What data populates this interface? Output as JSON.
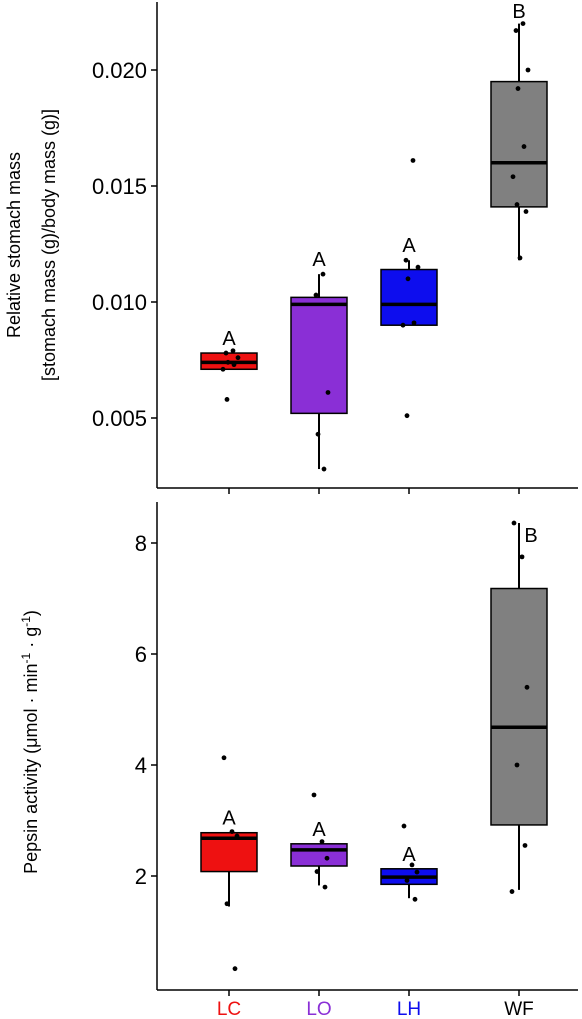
{
  "chart_data": [
    {
      "type": "box",
      "ylabel_line1": "Relative stomach mass",
      "ylabel_line2": "[stomach mass (g)/body mass (g)]",
      "ylim": [
        0.0025,
        0.0225
      ],
      "yticks": [
        0.005,
        0.01,
        0.015,
        0.02
      ],
      "ytick_labels": [
        "0.005",
        "0.010",
        "0.015",
        "0.020"
      ],
      "groups": [
        {
          "category": "LC",
          "color": "#ee1111",
          "q1": 0.0071,
          "median": 0.0074,
          "q3": 0.0078,
          "whisker_low": 0.0071,
          "whisker_high": 0.0078,
          "points": [
            0.0079,
            0.0078,
            0.0076,
            0.0074,
            0.0073,
            0.0071,
            0.0058
          ],
          "label": "A"
        },
        {
          "category": "LO",
          "color": "#8a2fd6",
          "q1": 0.0052,
          "median": 0.0099,
          "q3": 0.0102,
          "whisker_low": 0.0028,
          "whisker_high": 0.0112,
          "points": [
            0.0112,
            0.0103,
            0.0061,
            0.0043,
            0.0028
          ],
          "label": "A"
        },
        {
          "category": "LH",
          "color": "#0d0dee",
          "q1": 0.009,
          "median": 0.0099,
          "q3": 0.0114,
          "whisker_low": 0.009,
          "whisker_high": 0.0118,
          "points": [
            0.0161,
            0.0118,
            0.0115,
            0.011,
            0.0091,
            0.009,
            0.0051
          ],
          "label": "A"
        },
        {
          "category": "WF",
          "color": "#808080",
          "q1": 0.0141,
          "median": 0.016,
          "q3": 0.0195,
          "whisker_low": 0.0118,
          "whisker_high": 0.022,
          "points": [
            0.022,
            0.0217,
            0.02,
            0.0192,
            0.0167,
            0.0154,
            0.0142,
            0.0139,
            0.0119
          ],
          "label": "B"
        }
      ]
    },
    {
      "type": "box",
      "ylabel_prefix": "Pepsin activity (μmol · min",
      "ylabel_sup1": "-1",
      "ylabel_mid": " · g",
      "ylabel_sup2": "-1",
      "ylabel_suffix": ")",
      "ylim": [
        0.0,
        8.8
      ],
      "yticks": [
        2,
        4,
        6,
        8
      ],
      "ytick_labels": [
        "2",
        "4",
        "6",
        "8"
      ],
      "groups": [
        {
          "category": "LC",
          "color": "#ee1111",
          "q1": 2.08,
          "median": 2.68,
          "q3": 2.78,
          "whisker_low": 1.45,
          "whisker_high": 2.78,
          "points": [
            4.13,
            2.8,
            2.72,
            1.5,
            0.33
          ],
          "label": "A"
        },
        {
          "category": "LO",
          "color": "#8a2fd6",
          "q1": 2.18,
          "median": 2.47,
          "q3": 2.58,
          "whisker_low": 1.83,
          "whisker_high": 2.58,
          "points": [
            3.46,
            2.62,
            2.32,
            2.08,
            1.8
          ],
          "label": "A"
        },
        {
          "category": "LH",
          "color": "#0d0dee",
          "q1": 1.85,
          "median": 1.98,
          "q3": 2.13,
          "whisker_low": 1.6,
          "whisker_high": 2.13,
          "points": [
            2.9,
            2.2,
            2.07,
            1.92,
            1.58
          ],
          "label": "A"
        },
        {
          "category": "WF",
          "color": "#808080",
          "q1": 2.92,
          "median": 4.68,
          "q3": 7.18,
          "whisker_low": 1.75,
          "whisker_high": 8.36,
          "points": [
            8.36,
            7.75,
            5.4,
            4.0,
            2.55,
            1.72
          ],
          "label": "B"
        }
      ]
    }
  ]
}
